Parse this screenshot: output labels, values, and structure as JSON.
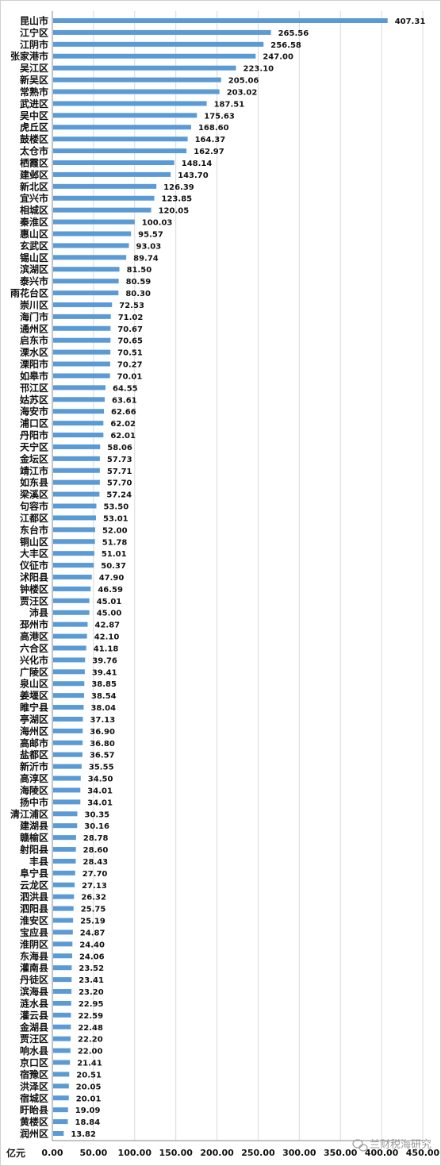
{
  "chart_data": {
    "type": "bar",
    "orientation": "horizontal",
    "categories": [
      "昆山市",
      "江宁区",
      "江阴市",
      "张家港市",
      "吴江区",
      "新吴区",
      "常熟市",
      "武进区",
      "吴中区",
      "虎丘区",
      "鼓楼区",
      "太仓市",
      "栖霞区",
      "建邺区",
      "新北区",
      "宜兴市",
      "相城区",
      "秦淮区",
      "惠山区",
      "玄武区",
      "锡山区",
      "滨湖区",
      "泰兴市",
      "雨花台区",
      "崇川区",
      "海门市",
      "通州区",
      "启东市",
      "溧水区",
      "溧阳市",
      "如皋市",
      "邗江区",
      "姑苏区",
      "海安市",
      "浦口区",
      "丹阳市",
      "天宁区",
      "金坛区",
      "靖江市",
      "如东县",
      "梁溪区",
      "句容市",
      "江都区",
      "东台市",
      "铜山区",
      "大丰区",
      "仪征市",
      "沭阳县",
      "钟楼区",
      "贾汪区",
      "沛县",
      "邳州市",
      "高港区",
      "六合区",
      "兴化市",
      "广陵区",
      "泉山区",
      "姜堰区",
      "睢宁县",
      "亭湖区",
      "海州区",
      "高邮市",
      "盐都区",
      "新沂市",
      "高淳区",
      "海陵区",
      "扬中市",
      "清江浦区",
      "建湖县",
      "赣榆区",
      "射阳县",
      "丰县",
      "阜宁县",
      "云龙区",
      "泗洪县",
      "泗阳县",
      "淮安区",
      "宝应县",
      "淮阴区",
      "东海县",
      "灌南县",
      "丹徒区",
      "滨海县",
      "涟水县",
      "灌云县",
      "金湖县",
      "贾汪区",
      "响水县",
      "京口区",
      "宿豫区",
      "洪泽区",
      "宿城区",
      "盱眙县",
      "黄楼区",
      "润州区"
    ],
    "values": [
      407.31,
      265.56,
      256.58,
      247.0,
      223.1,
      205.06,
      203.02,
      187.51,
      175.63,
      168.6,
      164.37,
      162.97,
      148.14,
      143.7,
      126.39,
      123.85,
      120.05,
      100.03,
      95.57,
      93.03,
      89.74,
      81.5,
      80.59,
      80.3,
      72.53,
      71.02,
      70.67,
      70.65,
      70.51,
      70.27,
      70.01,
      64.55,
      63.61,
      62.66,
      62.02,
      62.01,
      58.06,
      57.73,
      57.71,
      57.7,
      57.24,
      53.5,
      53.01,
      52.0,
      51.78,
      51.01,
      50.37,
      47.9,
      46.59,
      45.01,
      45.0,
      42.87,
      42.1,
      41.18,
      39.76,
      39.41,
      38.85,
      38.54,
      38.04,
      37.13,
      36.9,
      36.8,
      36.57,
      35.55,
      34.5,
      34.01,
      34.01,
      30.35,
      30.16,
      28.78,
      28.6,
      28.43,
      27.7,
      27.13,
      26.32,
      25.75,
      25.19,
      24.87,
      24.4,
      24.06,
      23.52,
      23.41,
      23.2,
      22.95,
      22.59,
      22.48,
      22.2,
      22.0,
      21.41,
      20.51,
      20.05,
      20.01,
      19.09,
      18.84,
      13.82
    ],
    "value_labels": [
      "407.31",
      "265.56",
      "256.58",
      "247.00",
      "223.10",
      "205.06",
      "203.02",
      "187.51",
      "175.63",
      "168.60",
      "164.37",
      "162.97",
      "148.14",
      "143.70",
      "126.39",
      "123.85",
      "120.05",
      "100.03",
      "95.57",
      "93.03",
      "89.74",
      "81.50",
      "80.59",
      "80.30",
      "72.53",
      "71.02",
      "70.67",
      "70.65",
      "70.51",
      "70.27",
      "70.01",
      "64.55",
      "63.61",
      "62.66",
      "62.02",
      "62.01",
      "58.06",
      "57.73",
      "57.71",
      "57.70",
      "57.24",
      "53.50",
      "53.01",
      "52.00",
      "51.78",
      "51.01",
      "50.37",
      "47.90",
      "46.59",
      "45.01",
      "45.00",
      "42.87",
      "42.10",
      "41.18",
      "39.76",
      "39.41",
      "38.85",
      "38.54",
      "38.04",
      "37.13",
      "36.90",
      "36.80",
      "36.57",
      "35.55",
      "34.50",
      "34.01",
      "34.01",
      "30.35",
      "30.16",
      "28.78",
      "28.60",
      "28.43",
      "27.70",
      "27.13",
      "26.32",
      "25.75",
      "25.19",
      "24.87",
      "24.40",
      "24.06",
      "23.52",
      "23.41",
      "23.20",
      "22.95",
      "22.59",
      "22.48",
      "22.20",
      "22.00",
      "21.41",
      "20.51",
      "20.05",
      "20.01",
      "19.09",
      "18.84",
      "13.82"
    ],
    "xlim": [
      0,
      450
    ],
    "x_ticks": [
      "0.00",
      "50.00",
      "100.00",
      "150.00",
      "200.00",
      "250.00",
      "300.00",
      "350.00",
      "400.00",
      "450.00"
    ],
    "x_tick_values": [
      0,
      50,
      100,
      150,
      200,
      250,
      300,
      350,
      400,
      450
    ],
    "unit_label": "亿元",
    "grid": true,
    "bar_color": "#5b9bd5"
  },
  "watermark": "兰财税海研究"
}
